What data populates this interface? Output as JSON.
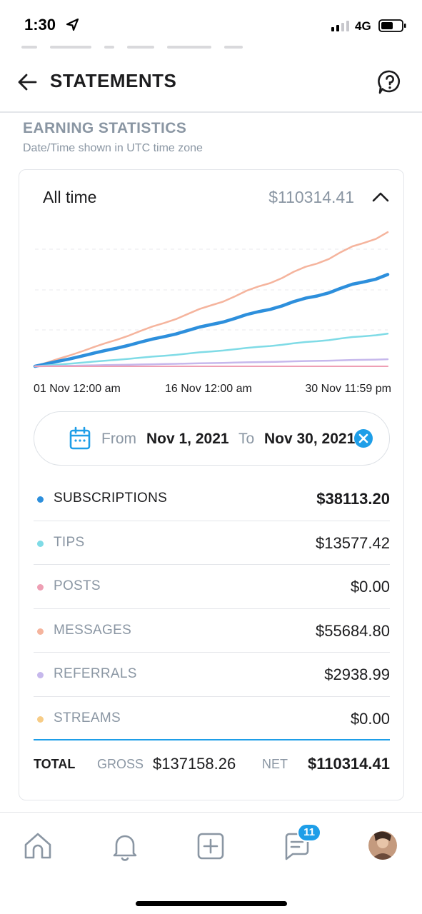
{
  "status_bar": {
    "time": "1:30",
    "network": "4G",
    "icons": [
      "location-arrow-icon",
      "cellular-signal-icon",
      "battery-icon"
    ]
  },
  "header": {
    "title": "STATEMENTS",
    "icons": [
      "back-arrow-icon",
      "help-icon"
    ]
  },
  "section": {
    "title": "EARNING STATISTICS",
    "subtitle": "Date/Time shown in UTC time zone"
  },
  "range": {
    "label": "All time",
    "amount": "$110314.41",
    "expanded": true
  },
  "chart_data": {
    "type": "line",
    "x": [
      "01 Nov 12:00 am",
      "16 Nov 12:00 am",
      "30 Nov 11:59 pm"
    ],
    "tick_labels": [
      "01 Nov 12:00 am",
      "16 Nov 12:00 am",
      "30 Nov 11:59 pm"
    ],
    "grid": true,
    "ylim": [
      0,
      56000
    ],
    "series": [
      {
        "key": "messages",
        "color": "#f5b49d",
        "width": 2.5,
        "end_value": 55684.8
      },
      {
        "key": "subscriptions",
        "color": "#2d8fdc",
        "width": 4.5,
        "end_value": 38113.2
      },
      {
        "key": "tips",
        "color": "#7fdbe6",
        "width": 2.5,
        "end_value": 13577.42
      },
      {
        "key": "referrals",
        "color": "#c6b8ec",
        "width": 2.5,
        "end_value": 2938.99
      },
      {
        "key": "streams",
        "color": "#f7cc86",
        "width": 2,
        "end_value": 0
      },
      {
        "key": "posts",
        "color": "#ee9fb4",
        "width": 2,
        "end_value": 0
      }
    ]
  },
  "date_filter": {
    "from_label": "From",
    "from_value": "Nov 1, 2021",
    "to_label": "To",
    "to_value": "Nov 30, 2021"
  },
  "rows": [
    {
      "label": "SUBSCRIPTIONS",
      "value": "$38113.20",
      "color": "#2d8fdc",
      "active": true
    },
    {
      "label": "TIPS",
      "value": "$13577.42",
      "color": "#7fdbe6",
      "active": false
    },
    {
      "label": "POSTS",
      "value": "$0.00",
      "color": "#ee9fb4",
      "active": false
    },
    {
      "label": "MESSAGES",
      "value": "$55684.80",
      "color": "#f5b49d",
      "active": false
    },
    {
      "label": "REFERRALS",
      "value": "$2938.99",
      "color": "#c6b8ec",
      "active": false
    },
    {
      "label": "STREAMS",
      "value": "$0.00",
      "color": "#f7cc86",
      "active": false
    }
  ],
  "totals": {
    "total_label": "TOTAL",
    "gross_label": "GROSS",
    "gross_value": "$137158.26",
    "net_label": "NET",
    "net_value": "$110314.41"
  },
  "tabbar": {
    "items": [
      "home-icon",
      "bell-icon",
      "add-post-icon",
      "messages-icon",
      "avatar"
    ],
    "messages_badge": "11"
  },
  "colors": {
    "accent": "#1e9ee8",
    "muted_text": "#8a96a3",
    "divider": "#e4e6ea"
  }
}
